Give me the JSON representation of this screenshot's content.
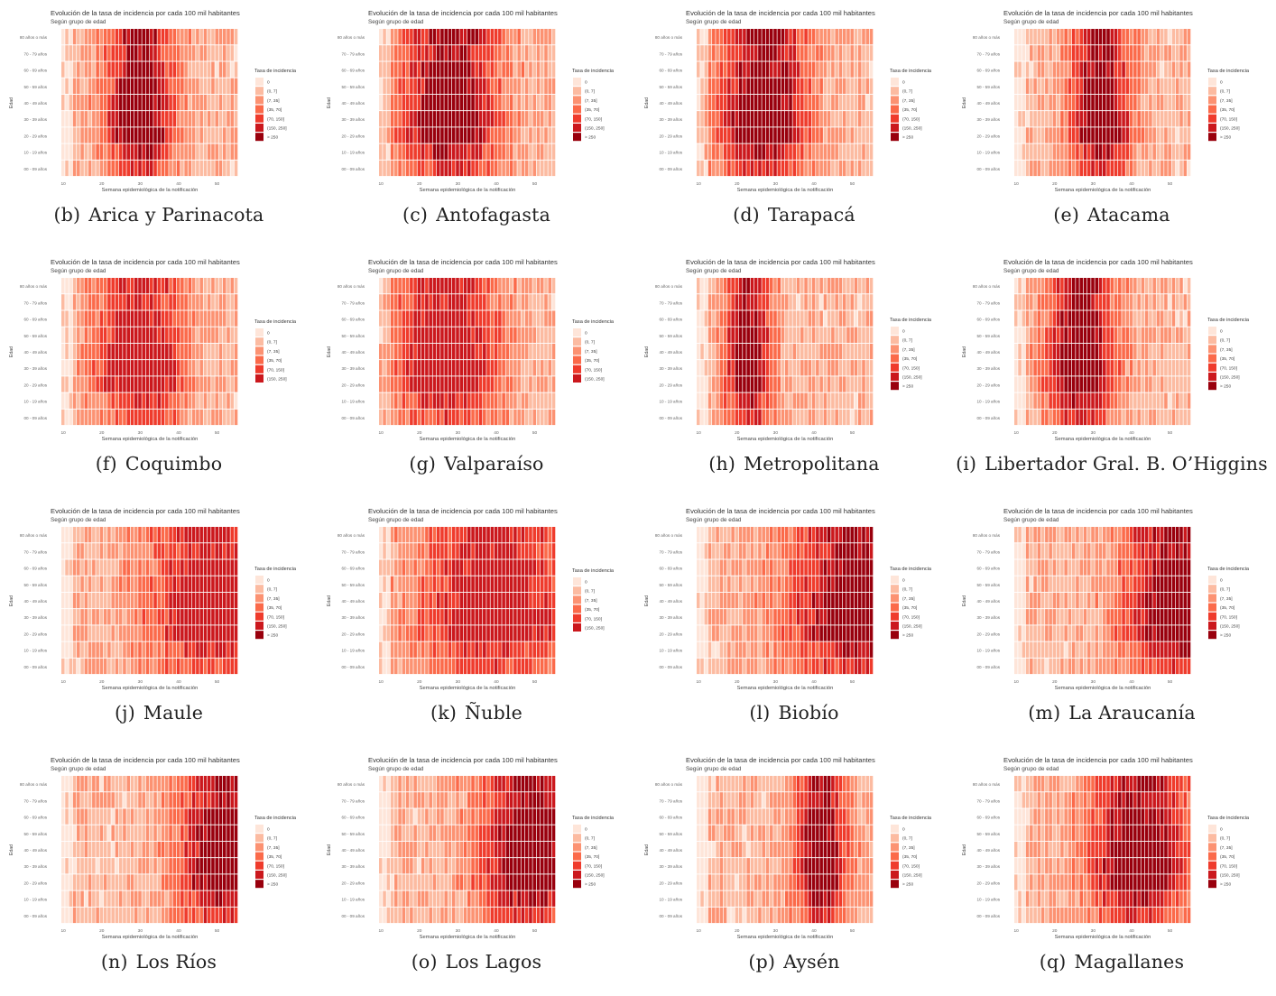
{
  "figure": {
    "chart_title": "Evolución de la tasa de incidencia por cada 100 mil habitantes",
    "chart_subtitle": "Según grupo de edad",
    "xlabel": "Semana epidemiológica de la notificación",
    "ylabel": "Edad",
    "legend_title": "Tasa de incidencia",
    "x_ticks": [
      "10",
      "20",
      "30",
      "40",
      "50"
    ],
    "age_groups_top_to_bottom": [
      "80 años o más",
      "70 - 79 años",
      "60 - 69 años",
      "50 - 59 años",
      "40 - 49 años",
      "30 - 39 años",
      "20 - 29 años",
      "10 - 19 años",
      "00 - 09 años"
    ],
    "legend_bins": [
      "0",
      "(0, 7]",
      "(7, 35]",
      "(35, 70]",
      "(70, 150]",
      "(150, 250]",
      "> 250"
    ],
    "bin_colors": [
      "#fee5d9",
      "#fcbba1",
      "#fc9272",
      "#fb6a4a",
      "#ef3b2c",
      "#cb181d",
      "#99000d"
    ]
  },
  "panels": [
    {
      "label": "(b)",
      "region": "Arica y Parinacota",
      "start_week": 10,
      "end_week": 55,
      "peak_week": 30,
      "width": 9,
      "max_bin": 6,
      "legend_bins": 7
    },
    {
      "label": "(c)",
      "region": "Antofagasta",
      "start_week": 10,
      "end_week": 55,
      "peak_week": 28,
      "width": 13,
      "max_bin": 6,
      "legend_bins": 7
    },
    {
      "label": "(d)",
      "region": "Tarapacá",
      "start_week": 10,
      "end_week": 55,
      "peak_week": 27,
      "width": 12,
      "max_bin": 6,
      "legend_bins": 7
    },
    {
      "label": "(e)",
      "region": "Atacama",
      "start_week": 10,
      "end_week": 55,
      "peak_week": 32,
      "width": 8,
      "max_bin": 6,
      "legend_bins": 7
    },
    {
      "label": "(f)",
      "region": "Coquimbo",
      "start_week": 10,
      "end_week": 55,
      "peak_week": 30,
      "width": 12,
      "max_bin": 5,
      "legend_bins": 6
    },
    {
      "label": "(g)",
      "region": "Valparaíso",
      "start_week": 10,
      "end_week": 55,
      "peak_week": 27,
      "width": 14,
      "max_bin": 5,
      "legend_bins": 6
    },
    {
      "label": "(h)",
      "region": "Metropolitana",
      "start_week": 10,
      "end_week": 55,
      "peak_week": 23,
      "width": 6,
      "max_bin": 6,
      "legend_bins": 7
    },
    {
      "label": "(i)",
      "region": "Libertador Gral. B. O’Higgins",
      "start_week": 10,
      "end_week": 55,
      "peak_week": 27,
      "width": 9,
      "max_bin": 6,
      "legend_bins": 7
    },
    {
      "label": "(j)",
      "region": "Maule",
      "start_week": 10,
      "end_week": 55,
      "peak_week": 50,
      "width": 18,
      "max_bin": 5,
      "legend_bins": 7
    },
    {
      "label": "(k)",
      "region": "Ñuble",
      "start_week": 10,
      "end_week": 55,
      "peak_week": 40,
      "width": 20,
      "max_bin": 5,
      "legend_bins": 6
    },
    {
      "label": "(l)",
      "region": "Biobío",
      "start_week": 10,
      "end_week": 55,
      "peak_week": 52,
      "width": 18,
      "max_bin": 6,
      "legend_bins": 7
    },
    {
      "label": "(m)",
      "region": "La Araucanía",
      "start_week": 10,
      "end_week": 55,
      "peak_week": 52,
      "width": 14,
      "max_bin": 6,
      "legend_bins": 7
    },
    {
      "label": "(n)",
      "region": "Los Ríos",
      "start_week": 10,
      "end_week": 55,
      "peak_week": 53,
      "width": 13,
      "max_bin": 6,
      "legend_bins": 7
    },
    {
      "label": "(o)",
      "region": "Los Lagos",
      "start_week": 10,
      "end_week": 55,
      "peak_week": 49,
      "width": 13,
      "max_bin": 6,
      "legend_bins": 7
    },
    {
      "label": "(p)",
      "region": "Aysén",
      "start_week": 10,
      "end_week": 55,
      "peak_week": 42,
      "width": 7,
      "max_bin": 6,
      "legend_bins": 7
    },
    {
      "label": "(q)",
      "region": "Magallanes",
      "start_week": 10,
      "end_week": 55,
      "peak_week": 42,
      "width": 13,
      "max_bin": 6,
      "legend_bins": 7
    }
  ],
  "chart_data": {
    "type": "heatmap",
    "note": "Small multiples: incidence-rate bin per epidemiological week and age group for each region; bin index refers to figure.legend_bins.",
    "x_range": [
      10,
      55
    ],
    "y_categories": [
      "00 - 09 años",
      "10 - 19 años",
      "20 - 29 años",
      "30 - 39 años",
      "40 - 49 años",
      "50 - 59 años",
      "60 - 69 años",
      "70 - 79 años",
      "80 años o más"
    ],
    "series": []
  }
}
